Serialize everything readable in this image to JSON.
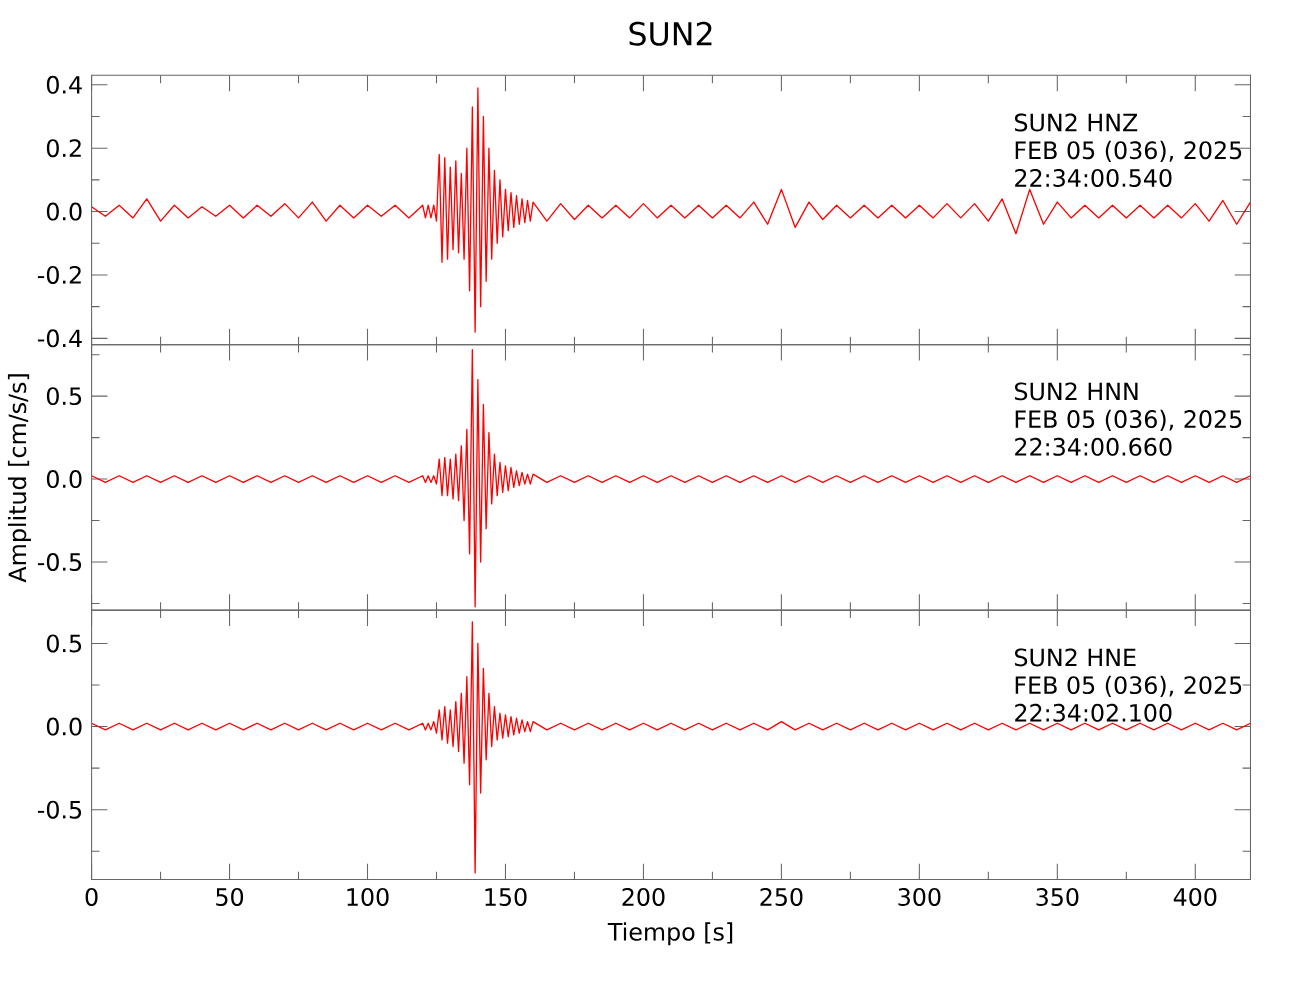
{
  "chart_data": [
    {
      "type": "line",
      "title": "SUN2",
      "annotations": [
        "SUN2   HNZ",
        "FEB 05 (036), 2025",
        "22:34:00.540"
      ],
      "x": [
        0,
        5,
        10,
        15,
        20,
        25,
        30,
        35,
        40,
        45,
        50,
        55,
        60,
        65,
        70,
        75,
        80,
        85,
        90,
        95,
        100,
        105,
        110,
        115,
        120,
        121,
        122,
        123,
        124,
        125,
        126,
        127,
        128,
        129,
        130,
        131,
        132,
        133,
        134,
        135,
        136,
        137,
        138,
        139,
        140,
        141,
        142,
        143,
        144,
        145,
        146,
        147,
        148,
        149,
        150,
        151,
        152,
        153,
        154,
        155,
        156,
        157,
        158,
        159,
        160,
        165,
        170,
        175,
        180,
        185,
        190,
        195,
        200,
        205,
        210,
        215,
        220,
        225,
        230,
        235,
        240,
        245,
        250,
        255,
        260,
        265,
        270,
        275,
        280,
        285,
        290,
        295,
        300,
        305,
        310,
        315,
        320,
        325,
        330,
        335,
        340,
        345,
        350,
        355,
        360,
        365,
        370,
        375,
        380,
        385,
        390,
        395,
        400,
        405,
        410,
        415,
        420
      ],
      "series": [
        {
          "color": "#ff0000",
          "values": [
            0.015,
            -0.015,
            0.02,
            -0.02,
            0.04,
            -0.03,
            0.02,
            -0.02,
            0.015,
            -0.015,
            0.02,
            -0.02,
            0.02,
            -0.015,
            0.025,
            -0.02,
            0.03,
            -0.03,
            0.02,
            -0.02,
            0.02,
            -0.015,
            0.02,
            -0.02,
            0.02,
            -0.02,
            0.02,
            -0.02,
            0.02,
            -0.03,
            0.18,
            -0.16,
            0.17,
            -0.15,
            0.14,
            -0.12,
            0.16,
            -0.13,
            0.12,
            -0.15,
            0.2,
            -0.25,
            0.33,
            -0.38,
            0.39,
            -0.3,
            0.3,
            -0.22,
            0.2,
            -0.15,
            0.13,
            -0.1,
            0.1,
            -0.08,
            0.07,
            -0.06,
            0.06,
            -0.05,
            0.05,
            -0.04,
            0.04,
            -0.035,
            0.035,
            -0.03,
            0.03,
            -0.03,
            0.025,
            -0.025,
            0.02,
            -0.02,
            0.02,
            -0.02,
            0.025,
            -0.02,
            0.02,
            -0.02,
            0.02,
            -0.02,
            0.02,
            -0.02,
            0.03,
            -0.04,
            0.07,
            -0.05,
            0.03,
            -0.025,
            0.02,
            -0.02,
            0.02,
            -0.02,
            0.02,
            -0.02,
            0.02,
            -0.02,
            0.025,
            -0.02,
            0.025,
            -0.03,
            0.04,
            -0.07,
            0.07,
            -0.04,
            0.03,
            -0.02,
            0.02,
            -0.02,
            0.02,
            -0.02,
            0.02,
            -0.02,
            0.02,
            -0.02,
            0.025,
            -0.03,
            0.035,
            -0.04,
            0.03
          ]
        }
      ],
      "xlim": [
        0,
        420
      ],
      "ylim": [
        -0.42,
        0.43
      ],
      "xticks": [
        0,
        {
          "value": 25,
          "label": null
        },
        50,
        {
          "value": 75,
          "label": null
        },
        100,
        {
          "value": 125,
          "label": null
        },
        150,
        {
          "value": 175,
          "label": null
        },
        200,
        {
          "value": 225,
          "label": null
        },
        250,
        {
          "value": 275,
          "label": null
        },
        300,
        {
          "value": 325,
          "label": null
        },
        350,
        {
          "value": 375,
          "label": null
        },
        400
      ],
      "yticks": [
        -0.4,
        {
          "value": -0.3,
          "label": null
        },
        -0.2,
        {
          "value": -0.1,
          "label": null
        },
        {
          "value": 0,
          "label": "0.0"
        },
        {
          "value": 0.1,
          "label": null
        },
        0.2,
        {
          "value": 0.3,
          "label": null
        },
        0.4
      ],
      "tick_labels": "y"
    },
    {
      "type": "line",
      "ylabel": "Amplitud [cm/s/s]",
      "annotations": [
        "SUN2   HNN",
        "FEB 05 (036), 2025",
        "22:34:00.660"
      ],
      "x": [
        0,
        5,
        10,
        15,
        20,
        25,
        30,
        35,
        40,
        45,
        50,
        55,
        60,
        65,
        70,
        75,
        80,
        85,
        90,
        95,
        100,
        105,
        110,
        115,
        120,
        121,
        122,
        123,
        124,
        125,
        126,
        127,
        128,
        129,
        130,
        131,
        132,
        133,
        134,
        135,
        136,
        137,
        138,
        139,
        140,
        141,
        142,
        143,
        144,
        145,
        146,
        147,
        148,
        149,
        150,
        151,
        152,
        153,
        154,
        155,
        156,
        157,
        158,
        159,
        160,
        165,
        170,
        175,
        180,
        185,
        190,
        195,
        200,
        205,
        210,
        215,
        220,
        225,
        230,
        235,
        240,
        245,
        250,
        255,
        260,
        265,
        270,
        275,
        280,
        285,
        290,
        295,
        300,
        305,
        310,
        315,
        320,
        325,
        330,
        335,
        340,
        345,
        350,
        355,
        360,
        365,
        370,
        375,
        380,
        385,
        390,
        395,
        400,
        405,
        410,
        415,
        420
      ],
      "series": [
        {
          "color": "#ff0000",
          "values": [
            0.02,
            -0.02,
            0.02,
            -0.02,
            0.02,
            -0.02,
            0.02,
            -0.02,
            0.02,
            -0.02,
            0.02,
            -0.02,
            0.02,
            -0.02,
            0.02,
            -0.02,
            0.02,
            -0.02,
            0.02,
            -0.02,
            0.02,
            -0.02,
            0.02,
            -0.02,
            0.02,
            -0.02,
            0.02,
            -0.02,
            0.02,
            -0.03,
            0.12,
            -0.1,
            0.13,
            -0.1,
            0.12,
            -0.12,
            0.15,
            -0.13,
            0.2,
            -0.25,
            0.3,
            -0.45,
            0.78,
            -0.77,
            0.6,
            -0.5,
            0.45,
            -0.3,
            0.28,
            -0.15,
            0.15,
            -0.1,
            0.1,
            -0.08,
            0.08,
            -0.07,
            0.07,
            -0.05,
            0.05,
            -0.04,
            0.04,
            -0.03,
            0.03,
            -0.03,
            0.03,
            -0.02,
            0.02,
            -0.02,
            0.02,
            -0.02,
            0.02,
            -0.02,
            0.02,
            -0.02,
            0.02,
            -0.02,
            0.02,
            -0.02,
            0.02,
            -0.02,
            0.02,
            -0.02,
            0.02,
            -0.02,
            0.02,
            -0.02,
            0.02,
            -0.02,
            0.02,
            -0.02,
            0.02,
            -0.02,
            0.02,
            -0.02,
            0.02,
            -0.02,
            0.02,
            -0.02,
            0.02,
            -0.02,
            0.02,
            -0.02,
            0.02,
            -0.02,
            0.02,
            -0.02,
            0.02,
            -0.02,
            0.02,
            -0.02,
            0.02,
            -0.02,
            0.02,
            -0.02,
            0.02,
            -0.02,
            0.02
          ]
        }
      ],
      "xlim": [
        0,
        420
      ],
      "ylim": [
        -0.79,
        0.81
      ],
      "xticks": [
        0,
        {
          "value": 25,
          "label": null
        },
        50,
        {
          "value": 75,
          "label": null
        },
        100,
        {
          "value": 125,
          "label": null
        },
        150,
        {
          "value": 175,
          "label": null
        },
        200,
        {
          "value": 225,
          "label": null
        },
        250,
        {
          "value": 275,
          "label": null
        },
        300,
        {
          "value": 325,
          "label": null
        },
        350,
        {
          "value": 375,
          "label": null
        },
        400
      ],
      "yticks": [
        {
          "value": -0.75,
          "label": null
        },
        -0.5,
        {
          "value": -0.25,
          "label": null
        },
        {
          "value": 0,
          "label": "0.0"
        },
        {
          "value": 0.25,
          "label": null
        },
        0.5,
        {
          "value": 0.75,
          "label": null
        }
      ],
      "tick_labels": "y"
    },
    {
      "type": "line",
      "xlabel": "Tiempo [s]",
      "annotations": [
        "SUN2   HNE",
        "FEB 05 (036), 2025",
        "22:34:02.100"
      ],
      "x": [
        0,
        5,
        10,
        15,
        20,
        25,
        30,
        35,
        40,
        45,
        50,
        55,
        60,
        65,
        70,
        75,
        80,
        85,
        90,
        95,
        100,
        105,
        110,
        115,
        120,
        121,
        122,
        123,
        124,
        125,
        126,
        127,
        128,
        129,
        130,
        131,
        132,
        133,
        134,
        135,
        136,
        137,
        138,
        139,
        140,
        141,
        142,
        143,
        144,
        145,
        146,
        147,
        148,
        149,
        150,
        151,
        152,
        153,
        154,
        155,
        156,
        157,
        158,
        159,
        160,
        165,
        170,
        175,
        180,
        185,
        190,
        195,
        200,
        205,
        210,
        215,
        220,
        225,
        230,
        235,
        240,
        245,
        250,
        255,
        260,
        265,
        270,
        275,
        280,
        285,
        290,
        295,
        300,
        305,
        310,
        315,
        320,
        325,
        330,
        335,
        340,
        345,
        350,
        355,
        360,
        365,
        370,
        375,
        380,
        385,
        390,
        395,
        400,
        405,
        410,
        415,
        420
      ],
      "series": [
        {
          "color": "#ff0000",
          "values": [
            0.02,
            -0.02,
            0.02,
            -0.02,
            0.02,
            -0.02,
            0.02,
            -0.02,
            0.02,
            -0.02,
            0.02,
            -0.02,
            0.02,
            -0.02,
            0.02,
            -0.02,
            0.02,
            -0.02,
            0.02,
            -0.02,
            0.02,
            -0.02,
            0.02,
            -0.02,
            0.02,
            -0.02,
            0.02,
            -0.02,
            0.03,
            -0.04,
            0.1,
            -0.08,
            0.12,
            -0.1,
            0.1,
            -0.12,
            0.15,
            -0.15,
            0.2,
            -0.22,
            0.3,
            -0.35,
            0.63,
            -0.88,
            0.5,
            -0.4,
            0.35,
            -0.2,
            0.2,
            -0.12,
            0.12,
            -0.08,
            0.08,
            -0.07,
            0.07,
            -0.06,
            0.06,
            -0.05,
            0.05,
            -0.04,
            0.04,
            -0.03,
            0.03,
            -0.03,
            0.03,
            -0.02,
            0.02,
            -0.02,
            0.02,
            -0.02,
            0.02,
            -0.02,
            0.02,
            -0.02,
            0.02,
            -0.02,
            0.02,
            -0.02,
            0.02,
            -0.02,
            0.02,
            -0.02,
            0.03,
            -0.02,
            0.02,
            -0.02,
            0.02,
            -0.02,
            0.02,
            -0.02,
            0.02,
            -0.02,
            0.02,
            -0.02,
            0.02,
            -0.02,
            0.02,
            -0.02,
            0.02,
            -0.02,
            0.02,
            -0.02,
            0.02,
            -0.02,
            0.02,
            -0.02,
            0.02,
            -0.02,
            0.02,
            -0.02,
            0.02,
            -0.02,
            0.02,
            -0.02,
            0.02,
            -0.02,
            0.02
          ]
        }
      ],
      "xlim": [
        0,
        420
      ],
      "ylim": [
        -0.92,
        0.7
      ],
      "xticks": [
        0,
        {
          "value": 25,
          "label": null
        },
        50,
        {
          "value": 75,
          "label": null
        },
        100,
        {
          "value": 125,
          "label": null
        },
        150,
        {
          "value": 175,
          "label": null
        },
        200,
        {
          "value": 225,
          "label": null
        },
        250,
        {
          "value": 275,
          "label": null
        },
        300,
        {
          "value": 325,
          "label": null
        },
        350,
        {
          "value": 375,
          "label": null
        },
        400
      ],
      "yticks": [
        {
          "value": -0.75,
          "label": null
        },
        -0.5,
        {
          "value": -0.25,
          "label": null
        },
        {
          "value": 0,
          "label": "0.0"
        },
        {
          "value": 0.25,
          "label": null
        },
        0.5
      ]
    }
  ]
}
